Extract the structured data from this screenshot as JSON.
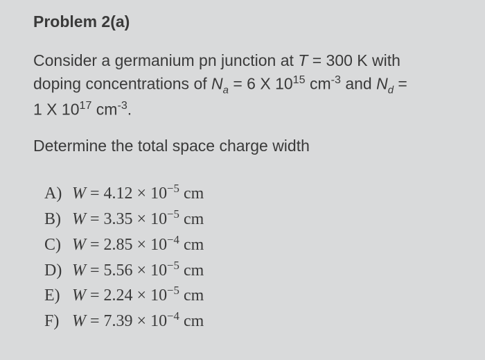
{
  "title": "Problem 2(a)",
  "statement": {
    "line1_pre": "Consider a germanium pn junction at ",
    "T_var": "T",
    "T_eq": " = 300 K with",
    "line2_pre": "doping concentrations of ",
    "Na_var": "N",
    "Na_sub": "a",
    "Na_val": " = 6 X 10",
    "Na_exp": "15",
    "Na_unit_pre": " cm",
    "Na_unit_exp": "-3",
    "and": " and ",
    "Nd_var": "N",
    "Nd_sub": "d",
    "Nd_eq": " =",
    "line3_pre": "1 X 10",
    "line3_exp": "17",
    "line3_unit_pre": " cm",
    "line3_unit_exp": "-3",
    "line3_end": "."
  },
  "question": "Determine the total space charge width",
  "choices": [
    {
      "label": "A)",
      "W": "W",
      "coef": "4.12",
      "exp": "−5",
      "unit": "cm"
    },
    {
      "label": "B)",
      "W": "W",
      "coef": "3.35",
      "exp": "−5",
      "unit": "cm"
    },
    {
      "label": "C)",
      "W": "W",
      "coef": "2.85",
      "exp": "−4",
      "unit": "cm"
    },
    {
      "label": "D)",
      "W": "W",
      "coef": "5.56",
      "exp": "−5",
      "unit": "cm"
    },
    {
      "label": "E)",
      "W": "W",
      "coef": "2.24",
      "exp": "−5",
      "unit": "cm"
    },
    {
      "label": "F)",
      "W": "W",
      "coef": "7.39",
      "exp": "−4",
      "unit": "cm"
    }
  ],
  "colors": {
    "background": "#d9dadb",
    "text": "#3a3a3a"
  }
}
